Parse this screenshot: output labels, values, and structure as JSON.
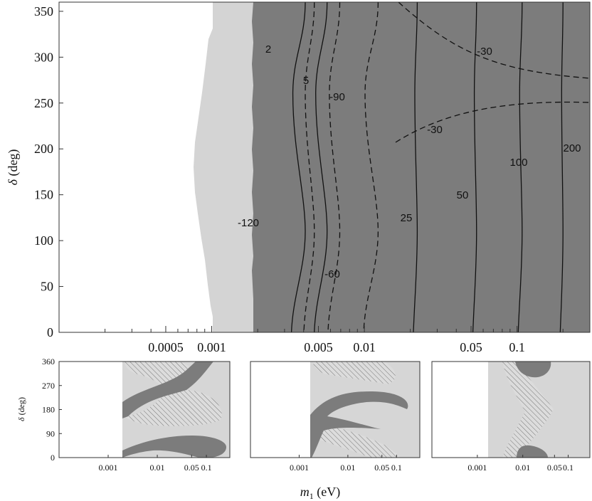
{
  "chart_data": [
    {
      "type": "contour",
      "xlabel": "m",
      "xlabel_sub": "1",
      "xlabel_unit": " (eV)",
      "ylabel": "δ",
      "ylabel_unit": " (deg)",
      "xscale": "log",
      "xlim": [
        0.0001,
        0.3
      ],
      "ylim": [
        0,
        360
      ],
      "yticks": [
        0,
        50,
        100,
        150,
        200,
        250,
        300,
        350
      ],
      "xticks": [
        {
          "value": 0.0005,
          "label": "0.0005"
        },
        {
          "value": 0.001,
          "label": "0.001"
        },
        {
          "value": 0.005,
          "label": "0.005"
        },
        {
          "value": 0.01,
          "label": "0.01"
        },
        {
          "value": 0.05,
          "label": "0.05"
        },
        {
          "value": 0.1,
          "label": "0.1"
        }
      ],
      "regions": [
        {
          "fill": "#d4d4d4",
          "from_x": 0.0024,
          "to_x": 0.0036
        },
        {
          "fill": "#7c7c7c",
          "from_x": 0.0036,
          "to_x": 0.3
        }
      ],
      "contours_solid": [
        {
          "label": "2",
          "x_at_ends": 0.0041,
          "x_at_mid": 0.0034
        },
        {
          "label": "5",
          "x_at_ends": 0.0057,
          "x_at_mid": 0.0048
        },
        {
          "label": "25",
          "x_at_ends": 0.0222,
          "x_at_mid": 0.0214
        },
        {
          "label": "50",
          "x_at_ends": 0.0543,
          "x_at_mid": 0.0525
        },
        {
          "label": "100",
          "x_at_ends": 0.108,
          "x_at_mid": 0.104
        },
        {
          "label": "200",
          "x_at_ends": 0.2,
          "x_at_mid": 0.196
        }
      ],
      "contours_dashed": [
        {
          "label": "-120",
          "x_at_ends": 0.0047,
          "x_at_mid": 0.0041
        },
        {
          "label": "-90",
          "x_at_ends": 0.0069,
          "x_at_mid": 0.0059
        },
        {
          "label": "-60",
          "x_at_ends": 0.0123,
          "x_at_mid": 0.0101
        },
        {
          "label": "-30",
          "type": "saddle"
        }
      ]
    },
    {
      "type": "region",
      "ylabel": "δ",
      "ylabel_unit": " (deg)",
      "yticks": [
        0,
        90,
        180,
        270,
        360
      ],
      "xticks": [
        "0.001",
        "0.01",
        "0.05",
        "0.1"
      ]
    },
    {
      "type": "region",
      "xticks": [
        "0.001",
        "0.01",
        "0.05",
        "0.1"
      ]
    },
    {
      "type": "region",
      "xticks": [
        "0.001",
        "0.01",
        "0.05",
        "0.1"
      ]
    }
  ]
}
